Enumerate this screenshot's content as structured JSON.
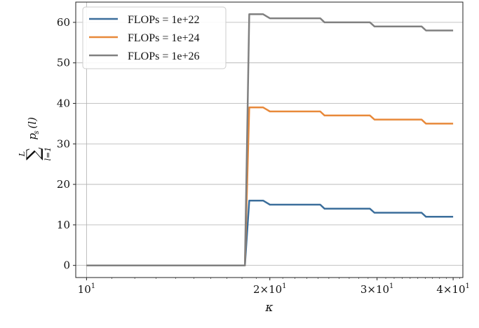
{
  "chart_data": {
    "type": "line",
    "title": "",
    "xlabel": "κ",
    "ylabel": "Σ_{l=1}^{L} p_s(l)",
    "xscale": "log",
    "xlim": [
      9.6,
      41.5
    ],
    "ylim": [
      -3,
      65
    ],
    "grid": true,
    "legend_position": "top-left",
    "xticks": [
      {
        "value": 10,
        "base": "10",
        "coef": "",
        "exp": "1"
      },
      {
        "value": 20,
        "base": "10",
        "coef": "2×",
        "exp": "1"
      },
      {
        "value": 30,
        "base": "10",
        "coef": "3×",
        "exp": "1"
      },
      {
        "value": 40,
        "base": "10",
        "coef": "4×",
        "exp": "1"
      }
    ],
    "yticks": [
      0,
      10,
      20,
      30,
      40,
      50,
      60
    ],
    "x": [
      10,
      18.2,
      18.5,
      19.5,
      20,
      24.2,
      24.6,
      29.2,
      29.7,
      35.5,
      36.1,
      40
    ],
    "series": [
      {
        "name": "FLOPs = 1e+22",
        "color": "#3b6e9b",
        "values": [
          0,
          0,
          16,
          16,
          15,
          15,
          14,
          14,
          13,
          13,
          12,
          12
        ]
      },
      {
        "name": "FLOPs = 1e+24",
        "color": "#e8893a",
        "values": [
          0,
          0,
          39,
          39,
          38,
          38,
          37,
          37,
          36,
          36,
          35,
          35
        ]
      },
      {
        "name": "FLOPs = 1e+26",
        "color": "#808080",
        "values": [
          0,
          0,
          62,
          62,
          61,
          61,
          60,
          60,
          59,
          59,
          58,
          58
        ]
      }
    ]
  }
}
